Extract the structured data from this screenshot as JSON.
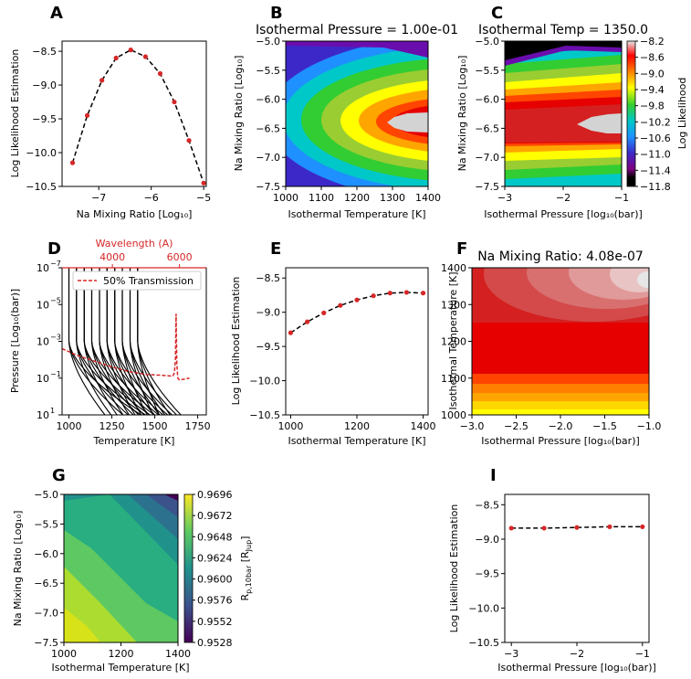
{
  "colors": {
    "curve": "#000000",
    "marker": "#d62728",
    "axis": "#000000",
    "transmission": "#d62728"
  },
  "chart_data": [
    {
      "id": "A",
      "letter": "A",
      "type": "line",
      "title": "",
      "xlabel": "Na Mixing Ratio [Log₁₀]",
      "ylabel": "Log Likelihood Estimation",
      "xlim": [
        -7.7,
        -4.95
      ],
      "ylim": [
        -10.5,
        -8.35
      ],
      "xticks": [
        -7,
        -6,
        -5
      ],
      "xtick_labels": [
        "−7",
        "−6",
        "−5"
      ],
      "yticks": [
        -10.5,
        -10.0,
        -9.5,
        -9.0,
        -8.5
      ],
      "ytick_labels": [
        "−10.5",
        "−10.0",
        "−9.5",
        "−9.0",
        "−8.5"
      ],
      "x": [
        -7.5,
        -7.22,
        -6.94,
        -6.67,
        -6.39,
        -6.11,
        -5.83,
        -5.56,
        -5.28,
        -5.0
      ],
      "y": [
        -10.15,
        -9.45,
        -8.93,
        -8.6,
        -8.48,
        -8.58,
        -8.83,
        -9.25,
        -9.82,
        -10.45
      ]
    },
    {
      "id": "B",
      "letter": "B",
      "type": "heatmap",
      "title": "Isothermal Pressure = 1.00e-01",
      "xlabel": "Isothermal Temperature [K]",
      "ylabel": "Na Mixing Ratio [Log₁₀]",
      "xlim": [
        1000,
        1400
      ],
      "ylim": [
        -7.5,
        -5.0
      ],
      "xticks": [
        1000,
        1100,
        1200,
        1300,
        1400
      ],
      "xtick_labels": [
        "1000",
        "1100",
        "1200",
        "1300",
        "1400"
      ],
      "yticks": [
        -7.5,
        -7.0,
        -6.5,
        -6.0,
        -5.5,
        -5.0
      ],
      "ytick_labels": [
        "−7.5",
        "−7.0",
        "−6.5",
        "−6.0",
        "−5.5",
        "−5.0"
      ],
      "peak_x": 1360,
      "peak_y": -6.4,
      "value_range": [
        -11.8,
        -8.2
      ]
    },
    {
      "id": "C",
      "letter": "C",
      "type": "heatmap",
      "title": "Isothermal Temp = 1350.0",
      "xlabel": "Isothermal Pressure [log₁₀(bar)]",
      "ylabel": "Na Mixing Ratio [Log₁₀]",
      "xlim": [
        -3,
        -1
      ],
      "ylim": [
        -7.5,
        -5.0
      ],
      "xticks": [
        -3,
        -2,
        -1
      ],
      "xtick_labels": [
        "−3",
        "−2",
        "−1"
      ],
      "yticks": [
        -7.5,
        -7.0,
        -6.5,
        -6.0,
        -5.5,
        -5.0
      ],
      "ytick_labels": [
        "−7.5",
        "−7.0",
        "−6.5",
        "−6.0",
        "−5.5",
        "−5.0"
      ],
      "colorbar": {
        "label": "Log Likelihood",
        "ticks": [
          -8.2,
          -8.6,
          -9.0,
          -9.4,
          -9.8,
          -10.2,
          -10.6,
          -11.0,
          -11.4,
          -11.8
        ],
        "tick_labels": [
          "−8.2",
          "−8.6",
          "−9.0",
          "−9.4",
          "−9.8",
          "−10.2",
          "−10.6",
          "−11.0",
          "−11.4",
          "−11.8"
        ]
      }
    },
    {
      "id": "D",
      "letter": "D",
      "type": "line",
      "title": "",
      "xlabel": "Temperature [K]",
      "ylabel": "Pressure [Log₁₀(bar)]",
      "top_axis_label": "Wavelength (A)",
      "top_ticks": [
        4000,
        6000
      ],
      "top_tick_labels": [
        "4000",
        "6000"
      ],
      "xlim": [
        960,
        1800
      ],
      "ylim_log10": [
        -7,
        1
      ],
      "xticks": [
        1000,
        1250,
        1500,
        1750
      ],
      "xtick_labels": [
        "1000",
        "1250",
        "1500",
        "1750"
      ],
      "yticks_log10": [
        -7,
        -5,
        -3,
        -1,
        1
      ],
      "ytick_labels": [
        [
          "10",
          "−7"
        ],
        [
          "10",
          "−5"
        ],
        [
          "10",
          "−3"
        ],
        [
          "10",
          "−1"
        ],
        [
          "10",
          "1"
        ]
      ],
      "profile_temperatures": [
        1000,
        1044,
        1089,
        1133,
        1178,
        1222,
        1267,
        1311,
        1356,
        1400
      ],
      "legend": "50% Transmission",
      "transmission_wavelength": [
        2500,
        3000,
        3500,
        4000,
        4500,
        5000,
        5500,
        5800,
        5850,
        5880,
        5900,
        5920,
        5950,
        6000,
        6300
      ],
      "transmission_log10_pressure": [
        -2.6,
        -2.2,
        -1.9,
        -1.6,
        -1.35,
        -1.2,
        -1.15,
        -1.1,
        -1.3,
        -2.0,
        -4.5,
        -1.8,
        -1.0,
        -0.9,
        -1.0
      ]
    },
    {
      "id": "E",
      "letter": "E",
      "type": "line",
      "title": "",
      "xlabel": "Isothermal Temperature [K]",
      "ylabel": "Log Likelihood Estimation",
      "xlim": [
        985,
        1415
      ],
      "ylim": [
        -10.5,
        -8.35
      ],
      "xticks": [
        1000,
        1200,
        1400
      ],
      "xtick_labels": [
        "1000",
        "1200",
        "1400"
      ],
      "yticks": [
        -10.5,
        -10.0,
        -9.5,
        -9.0,
        -8.5
      ],
      "ytick_labels": [
        "−10.5",
        "−10.0",
        "−9.5",
        "−9.0",
        "−8.5"
      ],
      "x": [
        1000,
        1050,
        1100,
        1150,
        1200,
        1250,
        1300,
        1350,
        1400
      ],
      "y": [
        -9.3,
        -9.14,
        -9.01,
        -8.9,
        -8.82,
        -8.76,
        -8.72,
        -8.71,
        -8.72
      ]
    },
    {
      "id": "F",
      "letter": "F",
      "type": "heatmap",
      "title": "Na Mixing Ratio: 4.08e-07",
      "xlabel": "Isothermal Pressure [log₁₀(bar)]",
      "ylabel": "Isothermal Temperature [K]",
      "xlim": [
        -3.0,
        -1.0
      ],
      "ylim": [
        1000,
        1400
      ],
      "xticks": [
        -3.0,
        -2.5,
        -2.0,
        -1.5,
        -1.0
      ],
      "xtick_labels": [
        "−3.0",
        "−2.5",
        "−2.0",
        "−1.5",
        "−1.0"
      ],
      "yticks": [
        1000,
        1100,
        1200,
        1300,
        1400
      ],
      "ytick_labels": [
        "1000",
        "1100",
        "1200",
        "1300",
        "1400"
      ]
    },
    {
      "id": "G",
      "letter": "G",
      "type": "heatmap",
      "title": "",
      "xlabel": "Isothermal Temperature [K]",
      "ylabel": "Na Mixing Ratio [Log₁₀]",
      "xlim": [
        1000,
        1400
      ],
      "ylim": [
        -7.5,
        -5.0
      ],
      "xticks": [
        1000,
        1200,
        1400
      ],
      "xtick_labels": [
        "1000",
        "1200",
        "1400"
      ],
      "yticks": [
        -7.5,
        -7.0,
        -6.5,
        -6.0,
        -5.5,
        -5.0
      ],
      "ytick_labels": [
        "−7.5",
        "−7.0",
        "−6.5",
        "−6.0",
        "−5.5",
        "−5.0"
      ],
      "colorbar": {
        "label_main": "R",
        "label_sub": "p,10bar",
        "label_unit_open": " [R",
        "label_unit_sub": "Jup",
        "label_unit_close": "]",
        "ticks": [
          0.9696,
          0.9672,
          0.9648,
          0.9624,
          0.96,
          0.9576,
          0.9552,
          0.9528
        ],
        "tick_labels": [
          "0.9696",
          "0.9672",
          "0.9648",
          "0.9624",
          "0.9600",
          "0.9576",
          "0.9552",
          "0.9528"
        ]
      }
    },
    {
      "id": "I",
      "letter": "I",
      "type": "line",
      "title": "",
      "xlabel": "Isothermal Pressure [log₁₀(bar)]",
      "ylabel": "Log Likelihood Estimation",
      "xlim": [
        -3.1,
        -0.9
      ],
      "ylim": [
        -10.5,
        -8.35
      ],
      "xticks": [
        -3,
        -2,
        -1
      ],
      "xtick_labels": [
        "−3",
        "−2",
        "−1"
      ],
      "yticks": [
        -10.5,
        -10.0,
        -9.5,
        -9.0,
        -8.5
      ],
      "ytick_labels": [
        "−10.5",
        "−10.0",
        "−9.5",
        "−9.0",
        "−8.5"
      ],
      "x": [
        -3.0,
        -2.5,
        -2.0,
        -1.5,
        -1.0
      ],
      "y": [
        -8.84,
        -8.84,
        -8.83,
        -8.82,
        -8.82
      ]
    }
  ]
}
